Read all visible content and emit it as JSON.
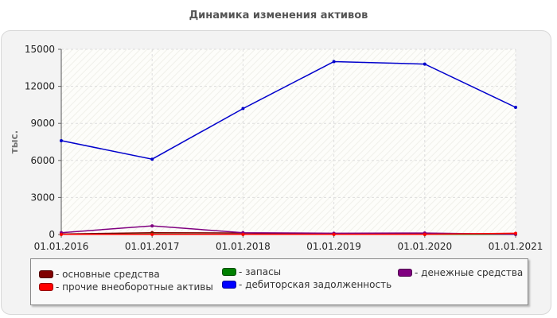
{
  "chart_data": {
    "type": "line",
    "title": "Динамика изменения активов",
    "ylabel": "тыс.",
    "xlabel": "",
    "x": [
      "01.01.2016",
      "01.01.2017",
      "01.01.2018",
      "01.01.2019",
      "01.01.2020",
      "01.01.2021"
    ],
    "y_ticks": [
      "0",
      "3000",
      "6000",
      "9000",
      "12000",
      "15000"
    ],
    "ylim": [
      0,
      15000
    ],
    "grid": true,
    "legend_position": "bottom",
    "series": [
      {
        "name": "основные средства",
        "color": "#800000",
        "values": [
          40,
          150,
          120,
          80,
          60,
          30
        ]
      },
      {
        "name": "запасы",
        "color": "#008000",
        "values": [
          20,
          30,
          20,
          20,
          10,
          10
        ]
      },
      {
        "name": "денежные средства",
        "color": "#800080",
        "values": [
          150,
          700,
          150,
          100,
          120,
          20
        ]
      },
      {
        "name": "прочие внеоборотные активы",
        "color": "#ff0000",
        "values": [
          10,
          10,
          10,
          10,
          10,
          100
        ]
      },
      {
        "name": "дебиторская задолженность",
        "color": "#0000cc",
        "values": [
          7600,
          6100,
          10200,
          14000,
          13800,
          10300
        ]
      }
    ]
  },
  "legend": [
    {
      "label": "- основные средства",
      "color": "#800000"
    },
    {
      "label": "- прочие внеоборотные активы",
      "color": "#ff0000"
    },
    {
      "label": "- запасы",
      "color": "#008000"
    },
    {
      "label": "- дебиторская задолженность",
      "color": "#0000ff"
    },
    {
      "label": "- денежные средства",
      "color": "#800080"
    }
  ]
}
